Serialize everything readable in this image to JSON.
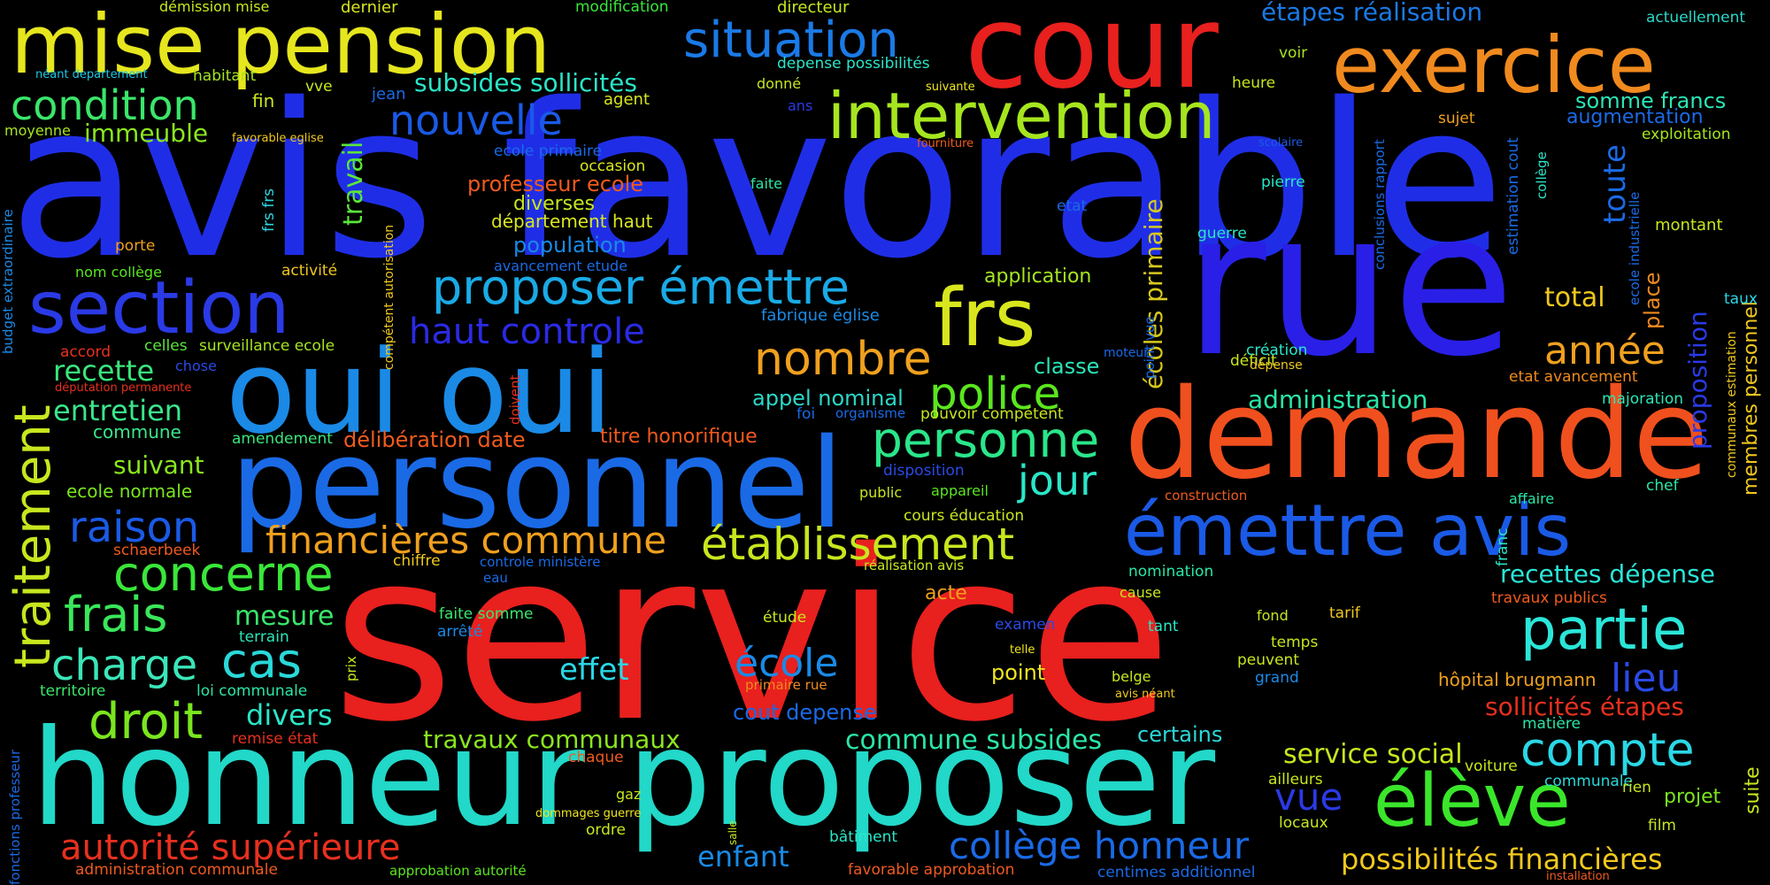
{
  "words": [
    {
      "text": "service",
      "color": "#e8201e",
      "weight": 1.0
    },
    {
      "text": "avis favorable",
      "color": "#1f2ee6",
      "weight": 0.98
    },
    {
      "text": "rue",
      "color": "#2a1fe6",
      "weight": 0.95
    },
    {
      "text": "honneur proposer",
      "color": "#22d8c8",
      "weight": 0.7
    },
    {
      "text": "personnel",
      "color": "#1a6ae6",
      "weight": 0.68
    },
    {
      "text": "demande",
      "color": "#f0501e",
      "weight": 0.65
    },
    {
      "text": "oui oui",
      "color": "#1a8ae6",
      "weight": 0.6
    },
    {
      "text": "cour",
      "color": "#e8201e",
      "weight": 0.6
    },
    {
      "text": "mise pension",
      "color": "#e6e61e",
      "weight": 0.45
    },
    {
      "text": "exercice",
      "color": "#f08a1e",
      "weight": 0.45
    },
    {
      "text": "section",
      "color": "#2a3ae6",
      "weight": 0.42
    },
    {
      "text": "intervention",
      "color": "#a6e61e",
      "weight": 0.38
    },
    {
      "text": "émettre avis",
      "color": "#1a5ae6",
      "weight": 0.4
    },
    {
      "text": "frs",
      "color": "#d8e61e",
      "weight": 0.45
    },
    {
      "text": "élève",
      "color": "#3ae62a",
      "weight": 0.45
    },
    {
      "text": "situation",
      "color": "#1a7ae6",
      "weight": 0.28
    },
    {
      "text": "proposer émettre",
      "color": "#1aaae6",
      "weight": 0.28
    },
    {
      "text": "haut controle",
      "color": "#2a2ae6",
      "weight": 0.25
    },
    {
      "text": "nouvelle",
      "color": "#1a5ae6",
      "weight": 0.25
    },
    {
      "text": "condition",
      "color": "#3ae66a",
      "weight": 0.25
    },
    {
      "text": "subsides sollicités",
      "color": "#2ae6c8",
      "weight": 0.15
    },
    {
      "text": "nombre",
      "color": "#f0a01e",
      "weight": 0.25
    },
    {
      "text": "police",
      "color": "#5ae61e",
      "weight": 0.25
    },
    {
      "text": "personne",
      "color": "#2ae68a",
      "weight": 0.28
    },
    {
      "text": "établissement",
      "color": "#c8e61e",
      "weight": 0.25
    },
    {
      "text": "financières commune",
      "color": "#f0a01e",
      "weight": 0.22
    },
    {
      "text": "raison",
      "color": "#1a5ae6",
      "weight": 0.24
    },
    {
      "text": "concerne",
      "color": "#3ae63a",
      "weight": 0.25
    },
    {
      "text": "traitement",
      "color": "#c8e61e",
      "weight": 0.3
    },
    {
      "text": "frais",
      "color": "#3ae65a",
      "weight": 0.25
    },
    {
      "text": "charge",
      "color": "#3ae6b8",
      "weight": 0.25
    },
    {
      "text": "cas",
      "color": "#2ad8d8",
      "weight": 0.28
    },
    {
      "text": "droit",
      "color": "#7ae61e",
      "weight": 0.28
    },
    {
      "text": "partie",
      "color": "#2ae6d8",
      "weight": 0.3
    },
    {
      "text": "compte",
      "color": "#2ad8e6",
      "weight": 0.28
    },
    {
      "text": "année",
      "color": "#f0a01e",
      "weight": 0.22
    },
    {
      "text": "total",
      "color": "#f0c81e",
      "weight": 0.15
    },
    {
      "text": "jour",
      "color": "#2ae6c8",
      "weight": 0.22
    },
    {
      "text": "école",
      "color": "#1a8ae6",
      "weight": 0.22
    },
    {
      "text": "lieu",
      "color": "#2a4ae6",
      "weight": 0.22
    },
    {
      "text": "vue",
      "color": "#2a3ae6",
      "weight": 0.2
    },
    {
      "text": "collège honneur",
      "color": "#1a6ae6",
      "weight": 0.2
    },
    {
      "text": "autorité supérieure",
      "color": "#e8301e",
      "weight": 0.2
    },
    {
      "text": "possibilités financières",
      "color": "#f0c81e",
      "weight": 0.16
    },
    {
      "text": "commune subsides",
      "color": "#2ae6a8",
      "weight": 0.16
    },
    {
      "text": "travaux communaux",
      "color": "#8ae61e",
      "weight": 0.14
    },
    {
      "text": "effet",
      "color": "#2ad8e6",
      "weight": 0.15
    },
    {
      "text": "divers",
      "color": "#2ae6c8",
      "weight": 0.14
    },
    {
      "text": "mesure",
      "color": "#3ae66a",
      "weight": 0.14
    },
    {
      "text": "recette",
      "color": "#3ae67a",
      "weight": 0.14
    },
    {
      "text": "entretien",
      "color": "#3ae68a",
      "weight": 0.14
    },
    {
      "text": "immeuble",
      "color": "#8ae61e",
      "weight": 0.12
    },
    {
      "text": "service social",
      "color": "#c8e61e",
      "weight": 0.14
    },
    {
      "text": "recettes dépense",
      "color": "#2ae6d8",
      "weight": 0.12
    },
    {
      "text": "sollicités étapes",
      "color": "#e8301e",
      "weight": 0.12
    },
    {
      "text": "administration",
      "color": "#2ae6a8",
      "weight": 0.12
    },
    {
      "text": "étapes réalisation",
      "color": "#1a7ae6",
      "weight": 0.12
    },
    {
      "text": "cout depense",
      "color": "#1a6ae6",
      "weight": 0.1
    },
    {
      "text": "suivant",
      "color": "#8ae61e",
      "weight": 0.1
    },
    {
      "text": "population",
      "color": "#1a8ae6",
      "weight": 0.1
    },
    {
      "text": "appel nominal",
      "color": "#2ad8c8",
      "weight": 0.1
    },
    {
      "text": "écoles primaire",
      "color": "#d8c81e",
      "weight": 0.1
    },
    {
      "text": "professeur ecole",
      "color": "#f05a1e",
      "weight": 0.1
    },
    {
      "text": "délibération date",
      "color": "#f05a1e",
      "weight": 0.1
    },
    {
      "text": "titre honorifique",
      "color": "#f05a1e",
      "weight": 0.09
    },
    {
      "text": "travail",
      "color": "#5ae63a",
      "weight": 0.1
    },
    {
      "text": "proposition",
      "color": "#2a3ae6",
      "weight": 0.1
    },
    {
      "text": "toute",
      "color": "#1a6ae6",
      "weight": 0.1
    },
    {
      "text": "somme francs",
      "color": "#2ae6b8",
      "weight": 0.09
    },
    {
      "text": "augmentation",
      "color": "#1a6ae6",
      "weight": 0.08
    },
    {
      "text": "enfant",
      "color": "#1a8ae6",
      "weight": 0.1
    },
    {
      "text": "place",
      "color": "#f08a1e",
      "weight": 0.08
    },
    {
      "text": "hôpital brugmann",
      "color": "#f0a01e",
      "weight": 0.07
    },
    {
      "text": "membres personnel",
      "color": "#f0c81e",
      "weight": 0.08
    },
    {
      "text": "ecole normale",
      "color": "#7ae61e",
      "weight": 0.07
    },
    {
      "text": "diverses",
      "color": "#c8e61e",
      "weight": 0.08
    },
    {
      "text": "département haut",
      "color": "#d8e61e",
      "weight": 0.07
    },
    {
      "text": "application",
      "color": "#a6e61e",
      "weight": 0.07
    },
    {
      "text": "classe",
      "color": "#2ae6b8",
      "weight": 0.08
    },
    {
      "text": "certains",
      "color": "#2ad8d8",
      "weight": 0.08
    },
    {
      "text": "point",
      "color": "#f0e61e",
      "weight": 0.08
    },
    {
      "text": "projet",
      "color": "#7ae61e",
      "weight": 0.07
    },
    {
      "text": "commune",
      "color": "#3ae68a",
      "weight": 0.07
    },
    {
      "text": "montant",
      "color": "#c8e61e",
      "weight": 0.06
    },
    {
      "text": "exploitation",
      "color": "#a6e61e",
      "weight": 0.06
    },
    {
      "text": "actuellement",
      "color": "#2ad8c8",
      "weight": 0.06
    },
    {
      "text": "dernier",
      "color": "#d8e61e",
      "weight": 0.06
    },
    {
      "text": "démission mise",
      "color": "#c8e61e",
      "weight": 0.05
    },
    {
      "text": "modification",
      "color": "#3ae63a",
      "weight": 0.06
    },
    {
      "text": "directeur",
      "color": "#c8e61e",
      "weight": 0.06
    },
    {
      "text": "depense possibilités",
      "color": "#2ae6c8",
      "weight": 0.06
    },
    {
      "text": "voir",
      "color": "#a6e61e",
      "weight": 0.05
    },
    {
      "text": "heure",
      "color": "#c8e61e",
      "weight": 0.05
    },
    {
      "text": "sujet",
      "color": "#f0a01e",
      "weight": 0.05
    },
    {
      "text": "agent",
      "color": "#d8e61e",
      "weight": 0.05
    },
    {
      "text": "donné",
      "color": "#c8e61e",
      "weight": 0.05
    },
    {
      "text": "ans",
      "color": "#2a3ae6",
      "weight": 0.05
    },
    {
      "text": "jean",
      "color": "#1a6ae6",
      "weight": 0.05
    },
    {
      "text": "vve",
      "color": "#c8e61e",
      "weight": 0.05
    },
    {
      "text": "fin",
      "color": "#c8e61e",
      "weight": 0.06
    },
    {
      "text": "habitant",
      "color": "#a6e61e",
      "weight": 0.05
    },
    {
      "text": "néant departement",
      "color": "#1ac8e6",
      "weight": 0.04
    },
    {
      "text": "moyenne",
      "color": "#a6e61e",
      "weight": 0.05
    },
    {
      "text": "favorable eglise",
      "color": "#f0c81e",
      "weight": 0.04
    },
    {
      "text": "ecole primaire",
      "color": "#1a6ae6",
      "weight": 0.05
    },
    {
      "text": "occasion",
      "color": "#d8e61e",
      "weight": 0.05
    },
    {
      "text": "faite",
      "color": "#2ae6a8",
      "weight": 0.05
    },
    {
      "text": "etat",
      "color": "#1a6ae6",
      "weight": 0.05
    },
    {
      "text": "pierre",
      "color": "#2ae6c8",
      "weight": 0.05
    },
    {
      "text": "guerre",
      "color": "#2ae6c8",
      "weight": 0.05
    },
    {
      "text": "fourniture",
      "color": "#f05a1e",
      "weight": 0.04
    },
    {
      "text": "scolaire",
      "color": "#1a5ae6",
      "weight": 0.04
    },
    {
      "text": "suivante",
      "color": "#f0e61e",
      "weight": 0.04
    },
    {
      "text": "frs frs",
      "color": "#2ad8e6",
      "weight": 0.05
    },
    {
      "text": "porte",
      "color": "#f0a01e",
      "weight": 0.05
    },
    {
      "text": "nom collège",
      "color": "#5ae61e",
      "weight": 0.05
    },
    {
      "text": "activité",
      "color": "#f0c81e",
      "weight": 0.05
    },
    {
      "text": "avancement etude",
      "color": "#1a6ae6",
      "weight": 0.05
    },
    {
      "text": "fabrique église",
      "color": "#1a8ae6",
      "weight": 0.05
    },
    {
      "text": "celles",
      "color": "#5ae63a",
      "weight": 0.05
    },
    {
      "text": "surveillance ecole",
      "color": "#a6e61e",
      "weight": 0.05
    },
    {
      "text": "accord",
      "color": "#e8301e",
      "weight": 0.05
    },
    {
      "text": "chose",
      "color": "#2a4ae6",
      "weight": 0.05
    },
    {
      "text": "députation permanente",
      "color": "#e8301e",
      "weight": 0.04
    },
    {
      "text": "amendement",
      "color": "#3ae67a",
      "weight": 0.05
    },
    {
      "text": "foi",
      "color": "#1a6ae6",
      "weight": 0.05
    },
    {
      "text": "organisme",
      "color": "#1a6ae6",
      "weight": 0.04
    },
    {
      "text": "pouvoir compétent",
      "color": "#c8e61e",
      "weight": 0.05
    },
    {
      "text": "moteur",
      "color": "#1a6ae6",
      "weight": 0.04
    },
    {
      "text": "déficit",
      "color": "#c8e61e",
      "weight": 0.05
    },
    {
      "text": "création",
      "color": "#2ae6c8",
      "weight": 0.05
    },
    {
      "text": "dépense",
      "color": "#f0c81e",
      "weight": 0.04
    },
    {
      "text": "etat avancement",
      "color": "#f08a1e",
      "weight": 0.05
    },
    {
      "text": "majoration",
      "color": "#2ae6b8",
      "weight": 0.05
    },
    {
      "text": "disposition",
      "color": "#2a4ae6",
      "weight": 0.05
    },
    {
      "text": "public",
      "color": "#c8e61e",
      "weight": 0.05
    },
    {
      "text": "appareil",
      "color": "#5ae61e",
      "weight": 0.05
    },
    {
      "text": "construction",
      "color": "#f05a1e",
      "weight": 0.04
    },
    {
      "text": "affaire",
      "color": "#2ae6a8",
      "weight": 0.04
    },
    {
      "text": "chef",
      "color": "#2ae6a8",
      "weight": 0.05
    },
    {
      "text": "cours éducation",
      "color": "#c8e61e",
      "weight": 0.05
    },
    {
      "text": "chiffre",
      "color": "#f0c81e",
      "weight": 0.05
    },
    {
      "text": "controle ministère",
      "color": "#1a6ae6",
      "weight": 0.04
    },
    {
      "text": "réalisation avis",
      "color": "#c8e61e",
      "weight": 0.04
    },
    {
      "text": "franc",
      "color": "#2ae6c8",
      "weight": 0.05
    },
    {
      "text": "schaerbeek",
      "color": "#f05a1e",
      "weight": 0.05
    },
    {
      "text": "eau",
      "color": "#1a6ae6",
      "weight": 0.04
    },
    {
      "text": "nomination",
      "color": "#2ae6a8",
      "weight": 0.05
    },
    {
      "text": "cause",
      "color": "#c8e61e",
      "weight": 0.05
    },
    {
      "text": "acte",
      "color": "#f0a01e",
      "weight": 0.06
    },
    {
      "text": "travaux publics",
      "color": "#f05a1e",
      "weight": 0.05
    },
    {
      "text": "faite somme",
      "color": "#3ae66a",
      "weight": 0.05
    },
    {
      "text": "arrêté",
      "color": "#1a8ae6",
      "weight": 0.05
    },
    {
      "text": "étude",
      "color": "#c8e61e",
      "weight": 0.05
    },
    {
      "text": "examen",
      "color": "#2a4ae6",
      "weight": 0.05
    },
    {
      "text": "tant",
      "color": "#2ae6c8",
      "weight": 0.05
    },
    {
      "text": "fond",
      "color": "#c8e61e",
      "weight": 0.04
    },
    {
      "text": "tarif",
      "color": "#f0c81e",
      "weight": 0.05
    },
    {
      "text": "terrain",
      "color": "#2ae6b8",
      "weight": 0.05
    },
    {
      "text": "prix",
      "color": "#c8e61e",
      "weight": 0.04
    },
    {
      "text": "telle",
      "color": "#f0e61e",
      "weight": 0.04
    },
    {
      "text": "temps",
      "color": "#c8e61e",
      "weight": 0.05
    },
    {
      "text": "peuvent",
      "color": "#c8e61e",
      "weight": 0.05
    },
    {
      "text": "grand",
      "color": "#1a8ae6",
      "weight": 0.05
    },
    {
      "text": "territoire",
      "color": "#3ae66a",
      "weight": 0.05
    },
    {
      "text": "loi communale",
      "color": "#2ae6a8",
      "weight": 0.05
    },
    {
      "text": "primaire rue",
      "color": "#f08a1e",
      "weight": 0.04
    },
    {
      "text": "belge",
      "color": "#c8e61e",
      "weight": 0.05
    },
    {
      "text": "avis néant",
      "color": "#f0c81e",
      "weight": 0.04
    },
    {
      "text": "remise état",
      "color": "#e8301e",
      "weight": 0.05
    },
    {
      "text": "chaque",
      "color": "#f05a1e",
      "weight": 0.05
    },
    {
      "text": "gaz",
      "color": "#c8e61e",
      "weight": 0.05
    },
    {
      "text": "dommages guerre",
      "color": "#f0e61e",
      "weight": 0.04
    },
    {
      "text": "ordre",
      "color": "#c8e61e",
      "weight": 0.05
    },
    {
      "text": "salle",
      "color": "#c8e61e",
      "weight": 0.03
    },
    {
      "text": "bâtiment",
      "color": "#2ae6c8",
      "weight": 0.05
    },
    {
      "text": "ailleurs",
      "color": "#c8e61e",
      "weight": 0.05
    },
    {
      "text": "locaux",
      "color": "#c8e61e",
      "weight": 0.05
    },
    {
      "text": "voiture",
      "color": "#c8e61e",
      "weight": 0.05
    },
    {
      "text": "matière",
      "color": "#2ae6a8",
      "weight": 0.05
    },
    {
      "text": "communale",
      "color": "#2ad8d8",
      "weight": 0.05
    },
    {
      "text": "rien",
      "color": "#c8e61e",
      "weight": 0.05
    },
    {
      "text": "film",
      "color": "#c8e61e",
      "weight": 0.05
    },
    {
      "text": "suite",
      "color": "#c8e61e",
      "weight": 0.05
    },
    {
      "text": "administration communale",
      "color": "#f05a1e",
      "weight": 0.05
    },
    {
      "text": "approbation autorité",
      "color": "#5ae61e",
      "weight": 0.05
    },
    {
      "text": "favorable approbation",
      "color": "#f05a1e",
      "weight": 0.05
    },
    {
      "text": "centimes additionnel",
      "color": "#1a6ae6",
      "weight": 0.05
    },
    {
      "text": "installation",
      "color": "#f05a1e",
      "weight": 0.04
    },
    {
      "text": "budget extraordinaire",
      "color": "#1a8ae6",
      "weight": 0.04
    },
    {
      "text": "compétent autorisation",
      "color": "#f0c81e",
      "weight": 0.04
    },
    {
      "text": "doivent",
      "color": "#e8301e",
      "weight": 0.04
    },
    {
      "text": "point vue",
      "color": "#1a6ae6",
      "weight": 0.04
    },
    {
      "text": "conclusions rapport",
      "color": "#1a6ae6",
      "weight": 0.04
    },
    {
      "text": "estimation cout",
      "color": "#1a6ae6",
      "weight": 0.05
    },
    {
      "text": "collège",
      "color": "#2ae6c8",
      "weight": 0.04
    },
    {
      "text": "ecole industrielle",
      "color": "#1a6ae6",
      "weight": 0.04
    },
    {
      "text": "taux",
      "color": "#2ad8e6",
      "weight": 0.05
    },
    {
      "text": "communaux estimation",
      "color": "#f0c81e",
      "weight": 0.04
    },
    {
      "text": "fonctions professeur",
      "color": "#1a6ae6",
      "weight": 0.04
    }
  ]
}
